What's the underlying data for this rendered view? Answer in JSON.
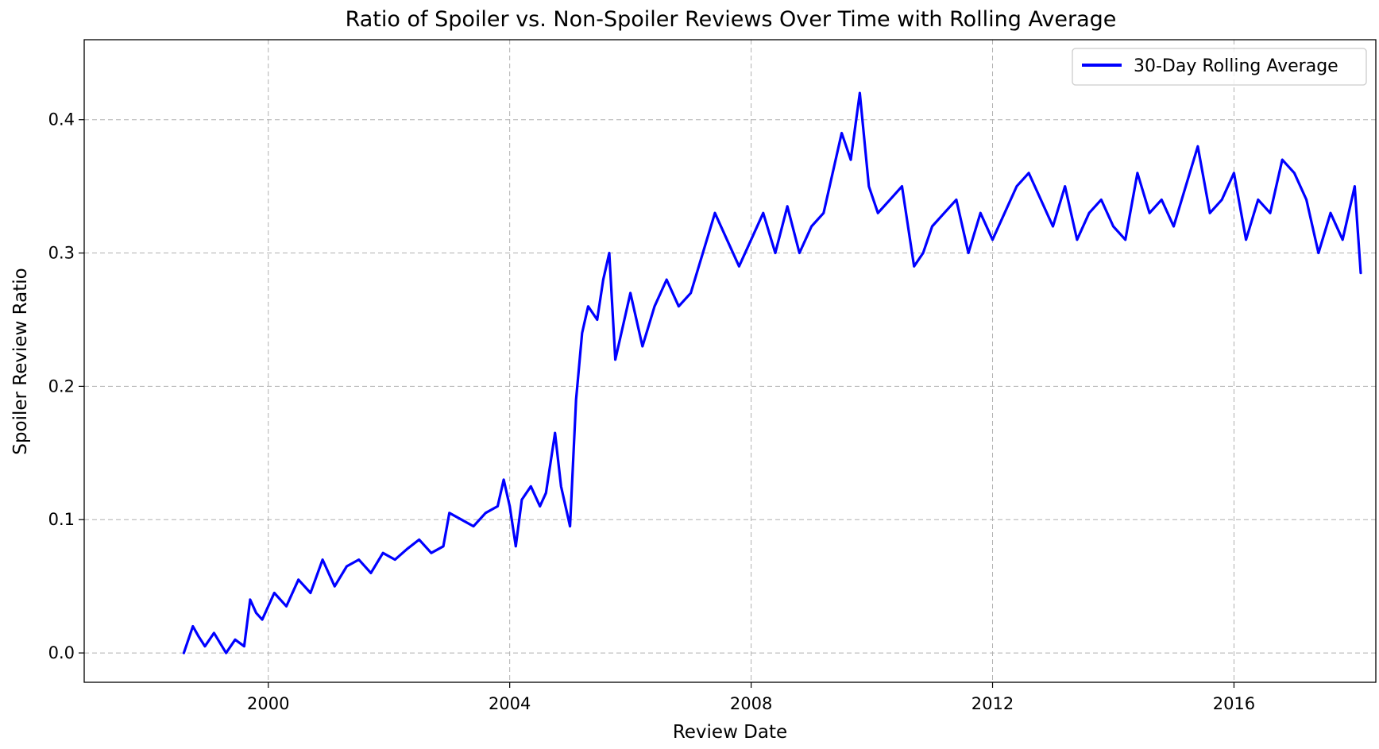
{
  "chart_data": {
    "type": "line",
    "title": "Ratio of Spoiler vs. Non-Spoiler Reviews Over Time with Rolling Average",
    "xlabel": "Review Date",
    "ylabel": "Spoiler Review Ratio",
    "xlim": [
      1996.95,
      2018.35
    ],
    "ylim": [
      -0.022,
      0.46
    ],
    "xticks": [
      2000,
      2004,
      2008,
      2012,
      2016
    ],
    "xtick_labels": [
      "2000",
      "2004",
      "2008",
      "2012",
      "2016"
    ],
    "yticks": [
      0.0,
      0.1,
      0.2,
      0.3,
      0.4
    ],
    "ytick_labels": [
      "0.0",
      "0.1",
      "0.2",
      "0.3",
      "0.4"
    ],
    "grid": true,
    "legend_position": "top-right",
    "series": [
      {
        "name": "30-Day Rolling Average",
        "color": "#0000ff",
        "x": [
          1998.6,
          1998.75,
          1998.85,
          1998.95,
          1999.1,
          1999.3,
          1999.45,
          1999.6,
          1999.7,
          1999.8,
          1999.9,
          2000.1,
          2000.3,
          2000.5,
          2000.7,
          2000.9,
          2001.1,
          2001.3,
          2001.5,
          2001.7,
          2001.9,
          2002.1,
          2002.3,
          2002.5,
          2002.7,
          2002.9,
          2003.0,
          2003.2,
          2003.4,
          2003.6,
          2003.8,
          2003.9,
          2004.0,
          2004.1,
          2004.2,
          2004.35,
          2004.5,
          2004.6,
          2004.75,
          2004.85,
          2005.0,
          2005.1,
          2005.2,
          2005.3,
          2005.45,
          2005.55,
          2005.65,
          2005.75,
          2005.85,
          2006.0,
          2006.2,
          2006.4,
          2006.6,
          2006.8,
          2007.0,
          2007.2,
          2007.4,
          2007.6,
          2007.8,
          2008.0,
          2008.2,
          2008.4,
          2008.6,
          2008.8,
          2009.0,
          2009.2,
          2009.35,
          2009.5,
          2009.65,
          2009.8,
          2009.95,
          2010.1,
          2010.3,
          2010.5,
          2010.7,
          2010.85,
          2011.0,
          2011.2,
          2011.4,
          2011.6,
          2011.8,
          2012.0,
          2012.2,
          2012.4,
          2012.6,
          2012.8,
          2013.0,
          2013.2,
          2013.4,
          2013.6,
          2013.8,
          2014.0,
          2014.2,
          2014.4,
          2014.6,
          2014.8,
          2015.0,
          2015.2,
          2015.4,
          2015.6,
          2015.8,
          2016.0,
          2016.2,
          2016.4,
          2016.6,
          2016.8,
          2017.0,
          2017.2,
          2017.4,
          2017.6,
          2017.8,
          2018.0,
          2018.1
        ],
        "y": [
          0.0,
          0.02,
          0.012,
          0.005,
          0.015,
          0.0,
          0.01,
          0.005,
          0.04,
          0.03,
          0.025,
          0.045,
          0.035,
          0.055,
          0.045,
          0.07,
          0.05,
          0.065,
          0.07,
          0.06,
          0.075,
          0.07,
          0.078,
          0.085,
          0.075,
          0.08,
          0.105,
          0.1,
          0.095,
          0.105,
          0.11,
          0.13,
          0.11,
          0.08,
          0.115,
          0.125,
          0.11,
          0.12,
          0.165,
          0.125,
          0.095,
          0.19,
          0.24,
          0.26,
          0.25,
          0.28,
          0.3,
          0.22,
          0.24,
          0.27,
          0.23,
          0.26,
          0.28,
          0.26,
          0.27,
          0.3,
          0.33,
          0.31,
          0.29,
          0.31,
          0.33,
          0.3,
          0.335,
          0.3,
          0.32,
          0.33,
          0.36,
          0.39,
          0.37,
          0.42,
          0.35,
          0.33,
          0.34,
          0.35,
          0.29,
          0.3,
          0.32,
          0.33,
          0.34,
          0.3,
          0.33,
          0.31,
          0.33,
          0.35,
          0.36,
          0.34,
          0.32,
          0.35,
          0.31,
          0.33,
          0.34,
          0.32,
          0.31,
          0.36,
          0.33,
          0.34,
          0.32,
          0.35,
          0.38,
          0.33,
          0.34,
          0.36,
          0.31,
          0.34,
          0.33,
          0.37,
          0.36,
          0.34,
          0.3,
          0.33,
          0.31,
          0.35,
          0.285
        ]
      }
    ]
  }
}
